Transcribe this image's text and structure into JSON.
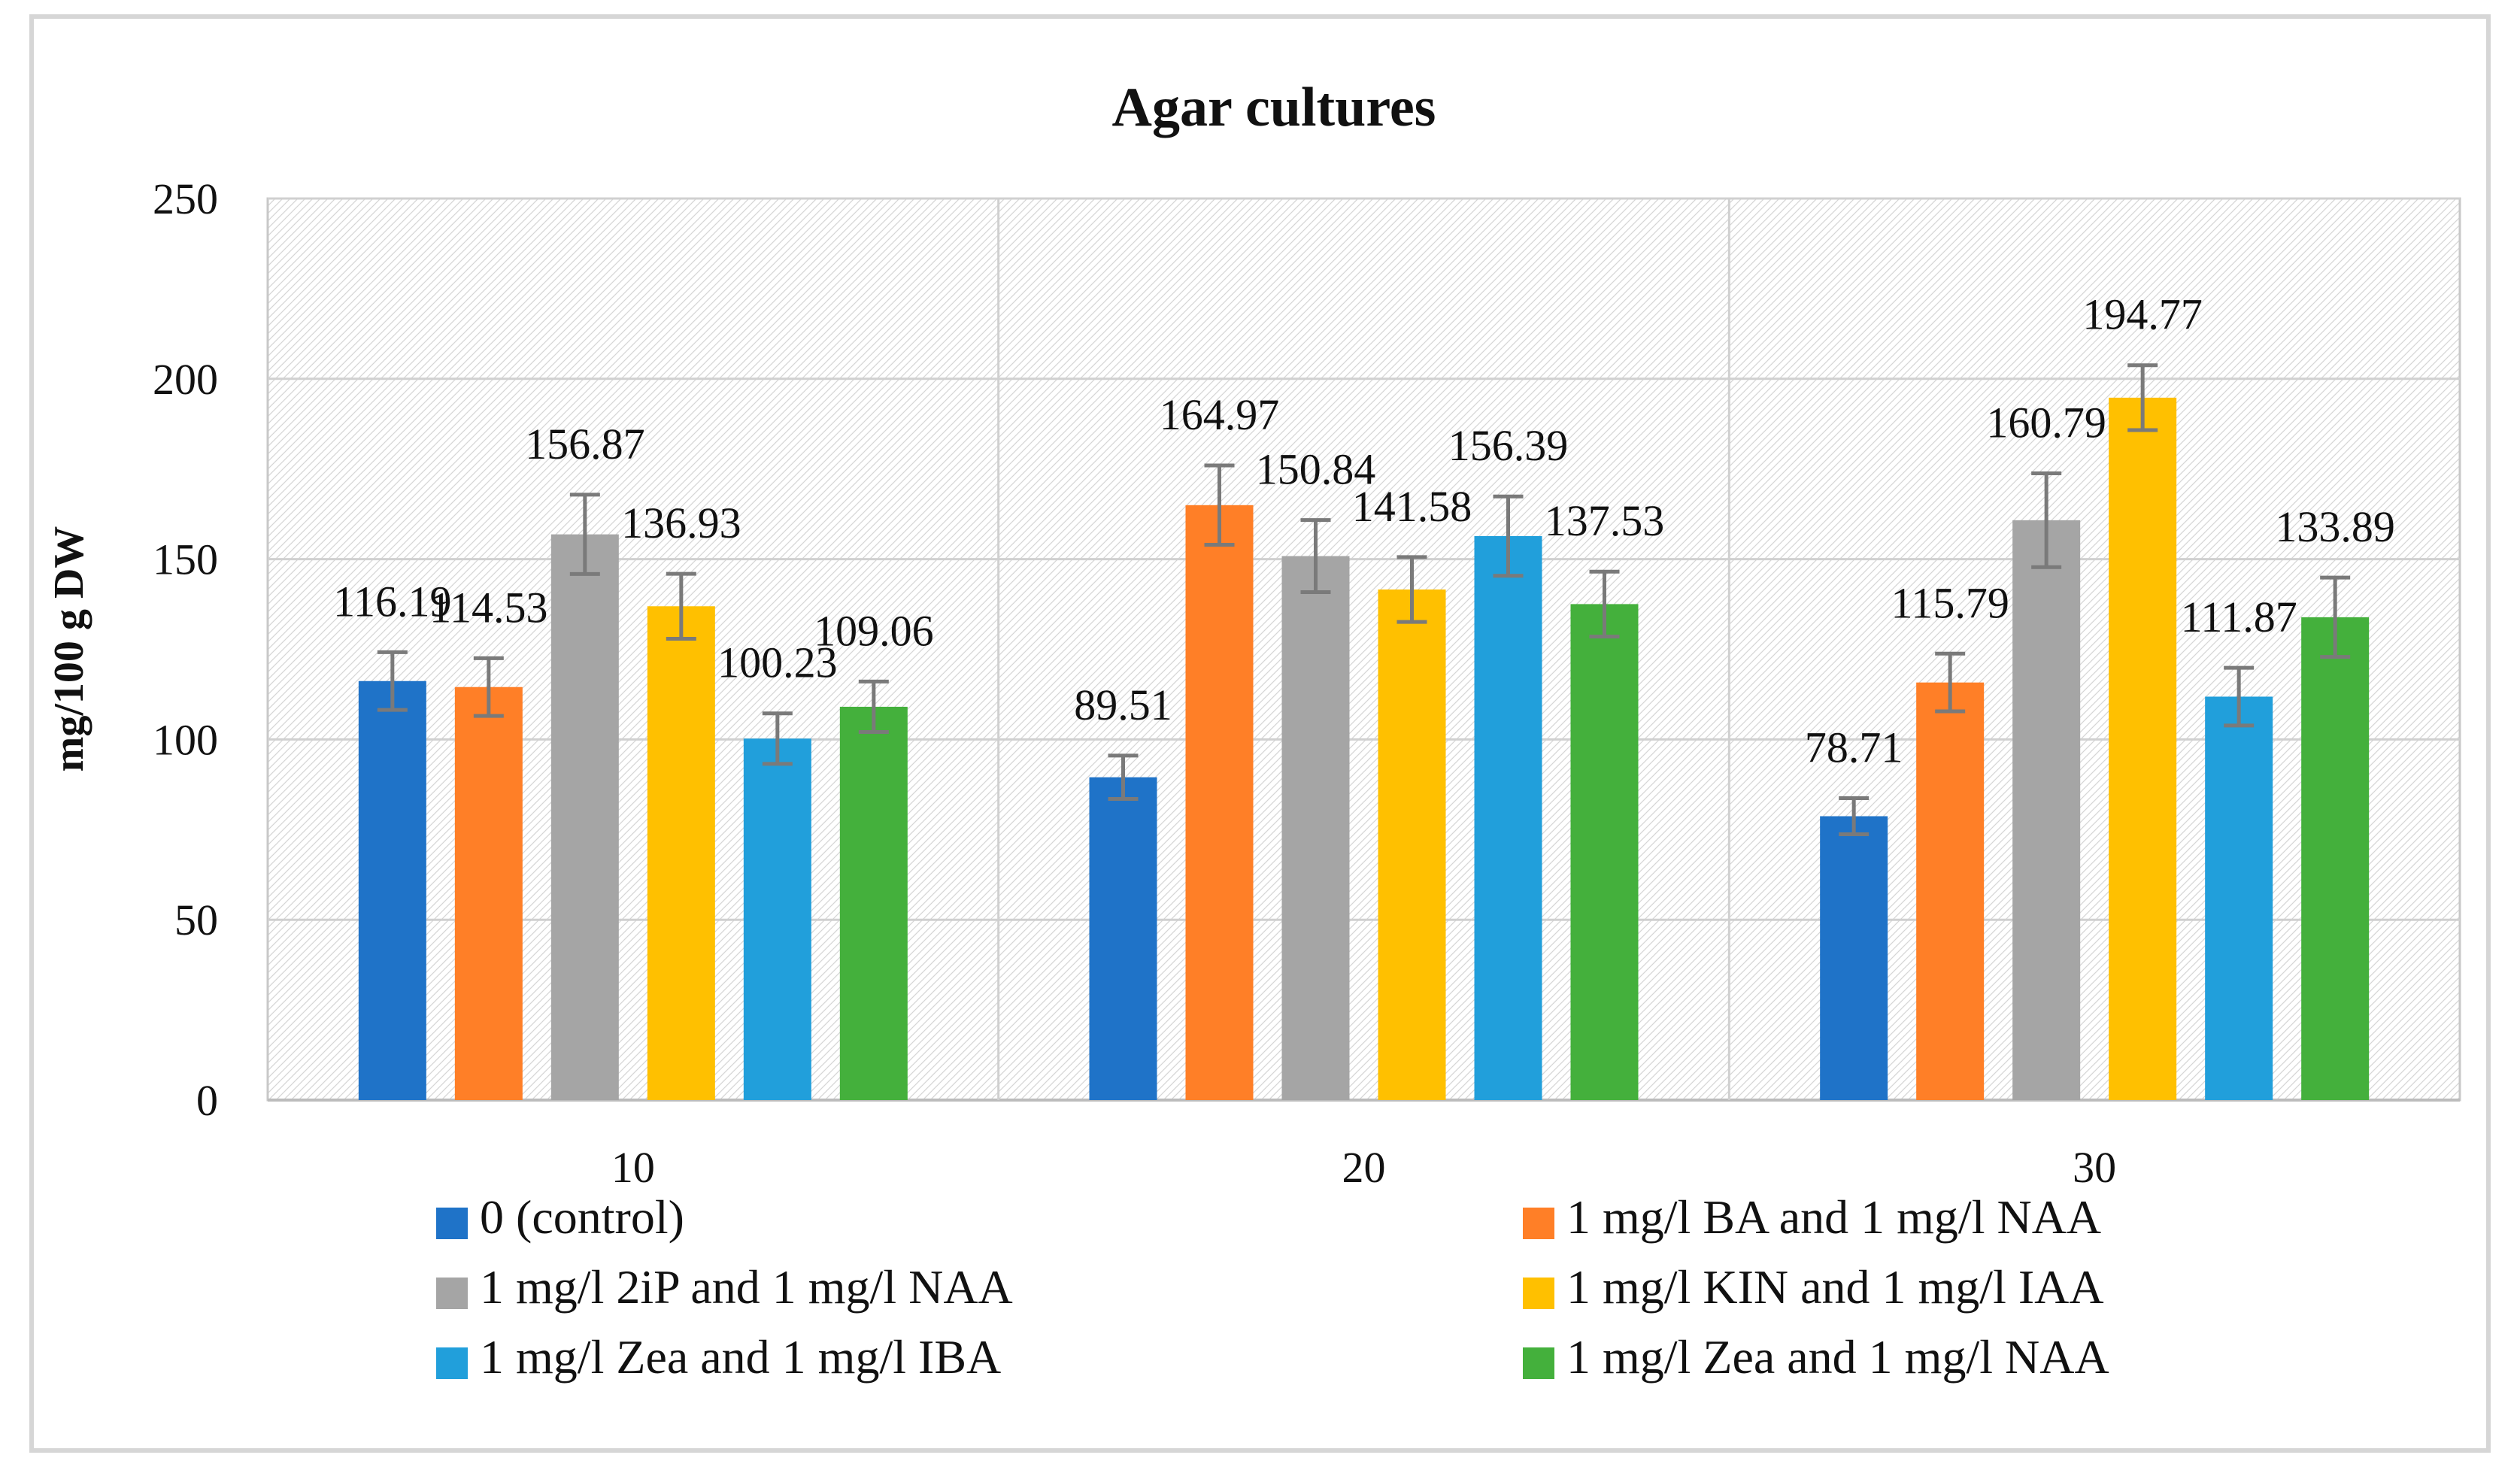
{
  "chart_data": {
    "type": "bar",
    "title": "Agar cultures",
    "xlabel": "",
    "ylabel": "mg/100 g DW",
    "categories": [
      "10",
      "20",
      "30"
    ],
    "y_ticks": [
      0,
      50,
      100,
      150,
      200,
      250
    ],
    "ylim": [
      0,
      250
    ],
    "grid": true,
    "legend_position": "bottom",
    "series": [
      {
        "name": "0 (control)",
        "color": "#1F73C8",
        "values": [
          116.19,
          89.51,
          78.71
        ],
        "errors": [
          8,
          6,
          5
        ]
      },
      {
        "name": "1 mg/l BA and 1 mg/l NAA",
        "color": "#FF7F27",
        "values": [
          114.53,
          164.97,
          115.79
        ],
        "errors": [
          8,
          11,
          8
        ]
      },
      {
        "name": "1 mg/l 2iP and 1 mg/l NAA",
        "color": "#A5A5A5",
        "values": [
          156.87,
          150.84,
          160.79
        ],
        "errors": [
          11,
          10,
          13
        ]
      },
      {
        "name": "1 mg/l KIN and 1 mg/l IAA",
        "color": "#FFC000",
        "values": [
          136.93,
          141.58,
          194.77
        ],
        "errors": [
          9,
          9,
          9
        ]
      },
      {
        "name": "1 mg/l Zea and 1 mg/l IBA",
        "color": "#219FDB",
        "values": [
          100.23,
          156.39,
          111.87
        ],
        "errors": [
          7,
          11,
          8
        ]
      },
      {
        "name": "1 mg/l Zea and 1 mg/l NAA",
        "color": "#44B03C",
        "values": [
          109.06,
          137.53,
          133.89
        ],
        "errors": [
          7,
          9,
          11
        ]
      }
    ],
    "value_labels": [
      [
        "116.19",
        "114.53",
        "156.87",
        "136.93",
        "100.23",
        "109.06"
      ],
      [
        "89.51",
        "164.97",
        "150.84",
        "141.58",
        "156.39",
        "137.53"
      ],
      [
        "78.71",
        "115.79",
        "160.79",
        "194.77",
        "111.87",
        "133.89"
      ]
    ]
  }
}
